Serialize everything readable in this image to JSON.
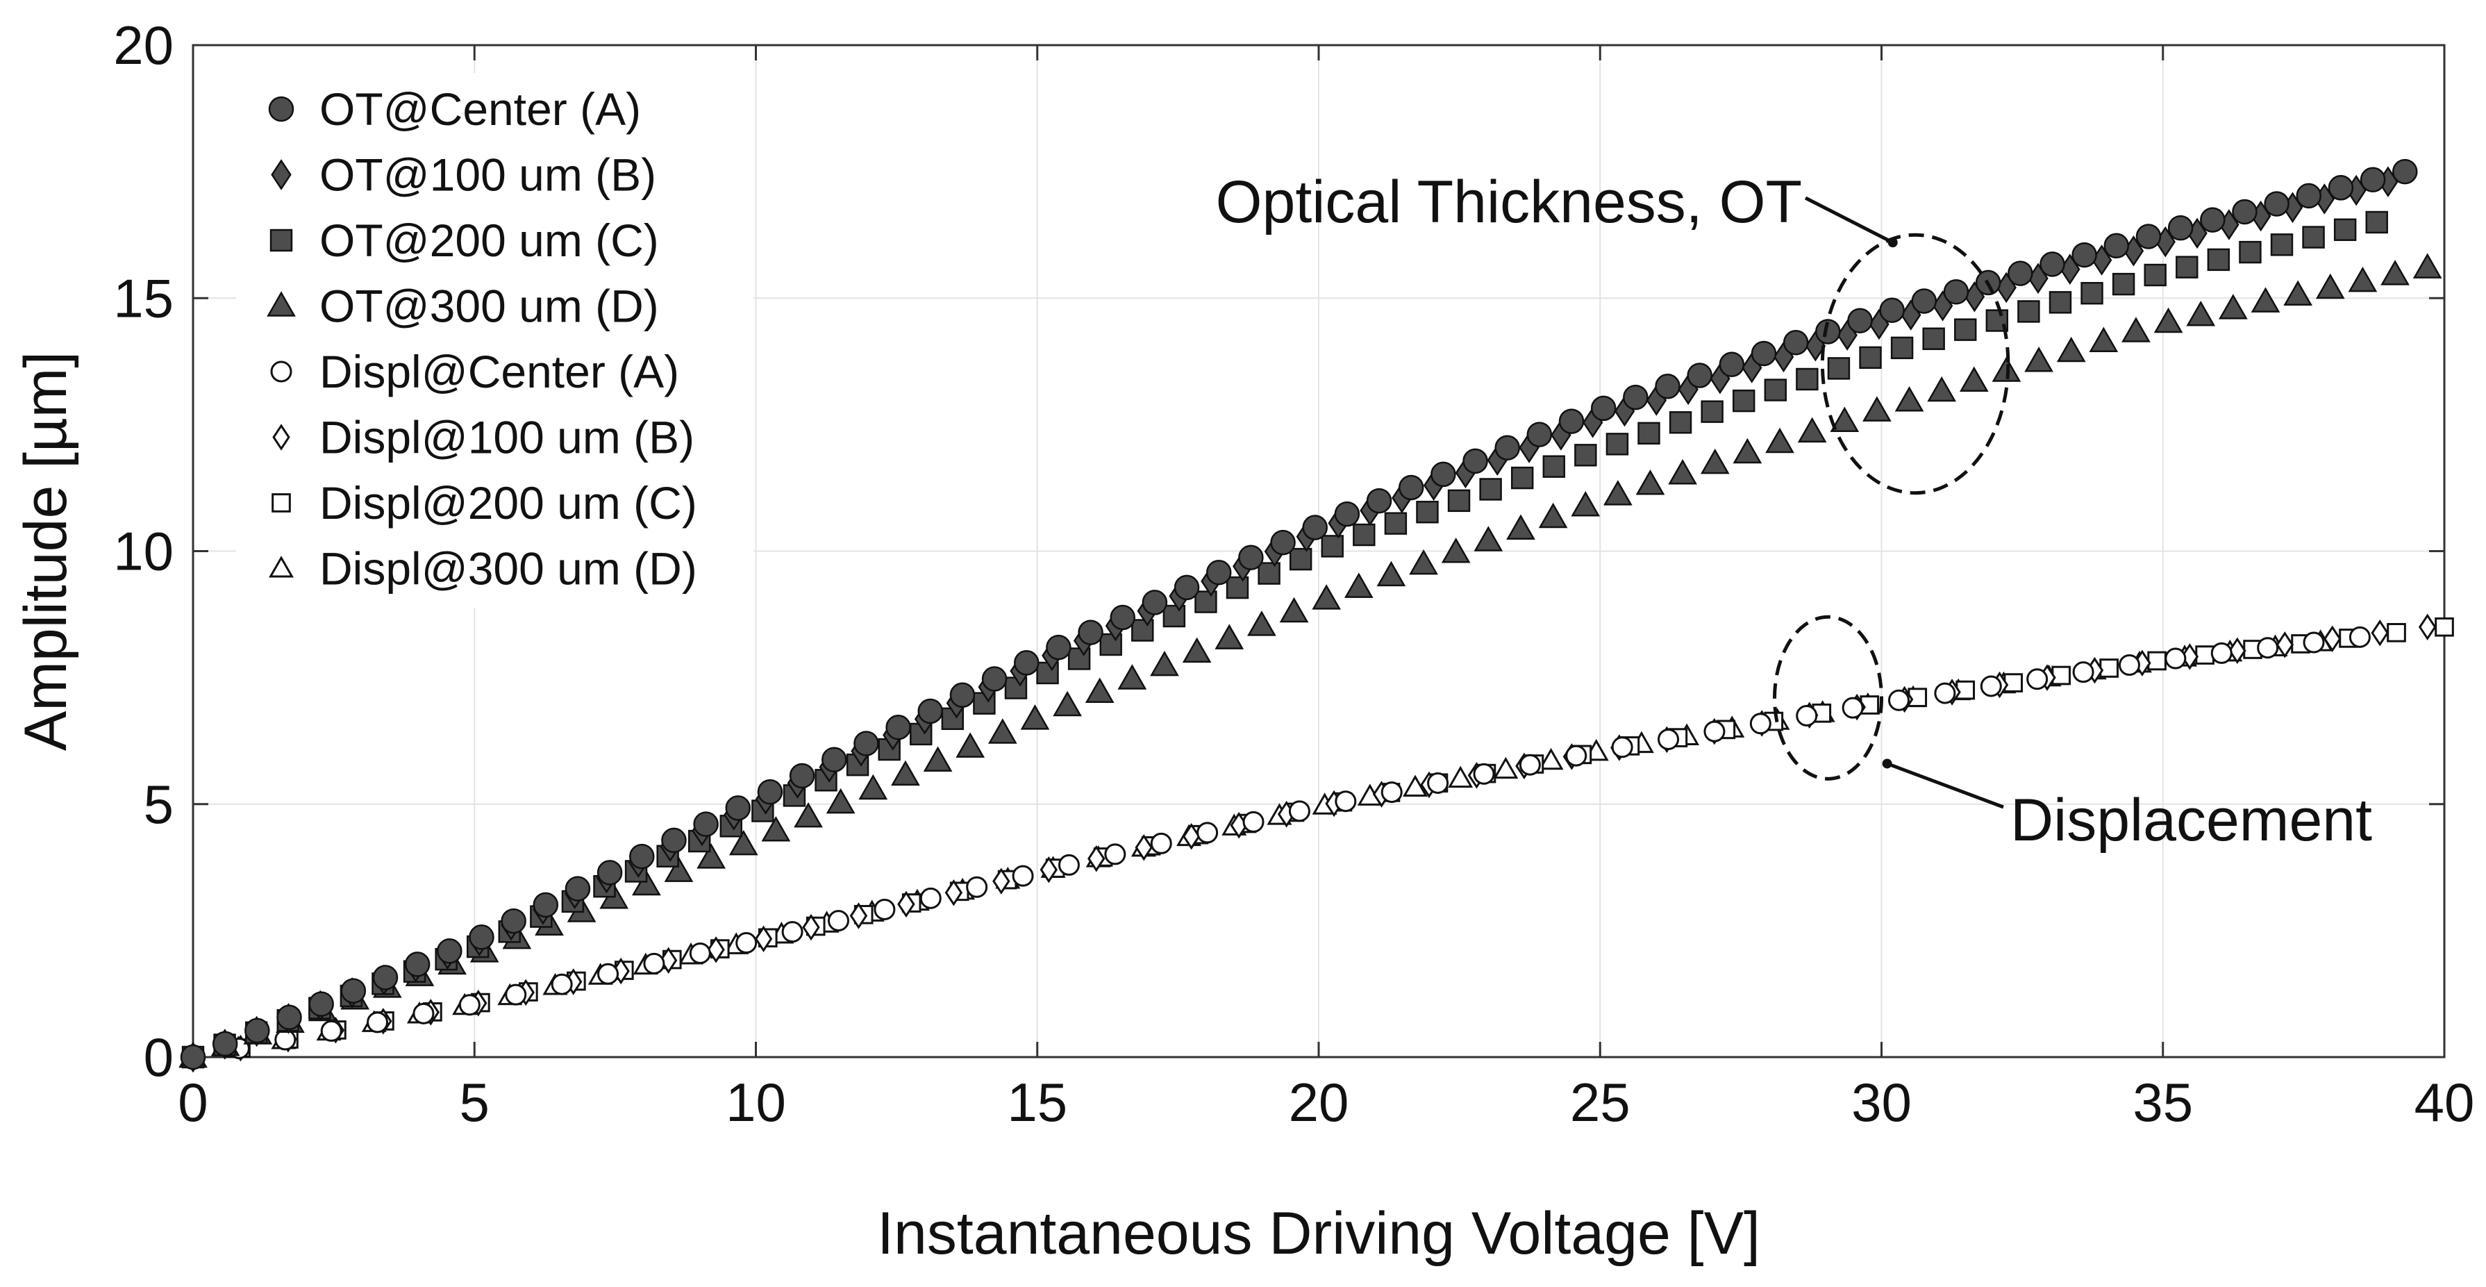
{
  "chart_data": {
    "type": "scatter",
    "title": "",
    "xlabel": "Instantaneous Driving Voltage [V]",
    "ylabel": "Amplitude [µm]",
    "xlim": [
      0,
      40
    ],
    "ylim": [
      0,
      20
    ],
    "xticks": [
      "0",
      "5",
      "10",
      "15",
      "20",
      "25",
      "30",
      "35",
      "40"
    ],
    "yticks": [
      "0",
      "5",
      "10",
      "15",
      "20"
    ],
    "grid": true,
    "legend_position": "top-left",
    "colors": {
      "filled": "#4d4d4d",
      "edge": "#111111",
      "open": "#ffffff"
    },
    "series": [
      {
        "name": "OT@Center (A)",
        "marker": "circle",
        "filled": true,
        "x_range": [
          0,
          39.3
        ],
        "n_points": 70,
        "curve": [
          [
            0,
            0
          ],
          [
            5,
            2.3
          ],
          [
            10,
            5.1
          ],
          [
            15,
            7.9
          ],
          [
            20,
            10.5
          ],
          [
            25,
            12.8
          ],
          [
            30,
            14.7
          ],
          [
            35,
            16.3
          ],
          [
            39.3,
            17.5
          ]
        ]
      },
      {
        "name": "OT@100 um (B)",
        "marker": "diamond",
        "filled": true,
        "x_range": [
          0,
          39.0
        ],
        "n_points": 70,
        "curve": [
          [
            0,
            0
          ],
          [
            5,
            2.25
          ],
          [
            10,
            5.0
          ],
          [
            15,
            7.8
          ],
          [
            20,
            10.4
          ],
          [
            25,
            12.6
          ],
          [
            30,
            14.5
          ],
          [
            35,
            16.1
          ],
          [
            39,
            17.3
          ]
        ]
      },
      {
        "name": "OT@200 um (C)",
        "marker": "square",
        "filled": true,
        "x_range": [
          0,
          38.8
        ],
        "n_points": 70,
        "curve": [
          [
            0,
            0
          ],
          [
            5,
            2.15
          ],
          [
            10,
            4.8
          ],
          [
            15,
            7.5
          ],
          [
            20,
            10.0
          ],
          [
            25,
            12.0
          ],
          [
            30,
            13.9
          ],
          [
            35,
            15.5
          ],
          [
            38.8,
            16.5
          ]
        ]
      },
      {
        "name": "OT@300 um (D)",
        "marker": "triangle",
        "filled": true,
        "x_range": [
          0,
          39.7
        ],
        "n_points": 70,
        "curve": [
          [
            0,
            0
          ],
          [
            5,
            2.0
          ],
          [
            10,
            4.3
          ],
          [
            15,
            6.7
          ],
          [
            20,
            9.0
          ],
          [
            25,
            11.0
          ],
          [
            30,
            12.8
          ],
          [
            35,
            14.5
          ],
          [
            39.7,
            15.6
          ]
        ]
      },
      {
        "name": "Displ@Center (A)",
        "marker": "circle",
        "filled": false,
        "x_range": [
          0,
          38.5
        ],
        "n_points": 48,
        "curve": [
          [
            0,
            0
          ],
          [
            5,
            1.05
          ],
          [
            10,
            2.3
          ],
          [
            15,
            3.65
          ],
          [
            20,
            4.95
          ],
          [
            25,
            6.05
          ],
          [
            30,
            7.0
          ],
          [
            35,
            7.85
          ],
          [
            38.5,
            8.3
          ]
        ]
      },
      {
        "name": "Displ@100 um (B)",
        "marker": "diamond",
        "filled": false,
        "x_range": [
          0,
          39.7
        ],
        "n_points": 48,
        "curve": [
          [
            0,
            0
          ],
          [
            5,
            1.05
          ],
          [
            10,
            2.3
          ],
          [
            15,
            3.65
          ],
          [
            20,
            4.95
          ],
          [
            25,
            6.05
          ],
          [
            30,
            7.0
          ],
          [
            35,
            7.85
          ],
          [
            39.7,
            8.5
          ]
        ]
      },
      {
        "name": "Displ@200 um (C)",
        "marker": "square",
        "filled": false,
        "x_range": [
          0,
          40.0
        ],
        "n_points": 48,
        "curve": [
          [
            0,
            0
          ],
          [
            5,
            1.05
          ],
          [
            10,
            2.3
          ],
          [
            15,
            3.65
          ],
          [
            20,
            4.95
          ],
          [
            25,
            6.05
          ],
          [
            30,
            7.0
          ],
          [
            35,
            7.85
          ],
          [
            40,
            8.5
          ]
        ]
      },
      {
        "name": "Displ@300 um (D)",
        "marker": "triangle",
        "filled": false,
        "x_range": [
          0,
          37.8
        ],
        "n_points": 48,
        "curve": [
          [
            0,
            0
          ],
          [
            5,
            1.05
          ],
          [
            10,
            2.3
          ],
          [
            15,
            3.65
          ],
          [
            20,
            4.95
          ],
          [
            25,
            6.05
          ],
          [
            30,
            7.0
          ],
          [
            35,
            7.85
          ],
          [
            37.8,
            8.2
          ]
        ]
      }
    ],
    "annotations": [
      {
        "text": "Optical Thickness, OT",
        "ellipse_center": [
          30.6,
          13.7
        ],
        "ellipse_radii": [
          1.65,
          2.55
        ],
        "arrow_to": [
          30.2,
          16.1
        ]
      },
      {
        "text": "Displacement",
        "ellipse_center": [
          29.05,
          7.1
        ],
        "ellipse_radii": [
          0.95,
          1.6
        ],
        "arrow_to": [
          30.1,
          5.8
        ]
      }
    ]
  }
}
